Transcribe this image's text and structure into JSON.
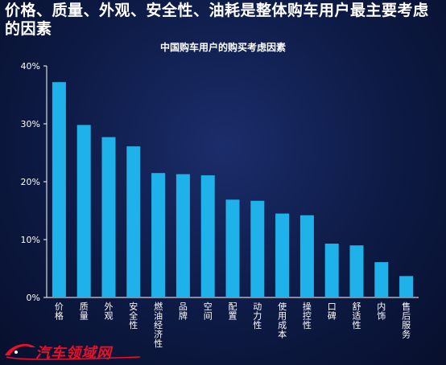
{
  "headline": "价格、质量、外观、安全性、油耗是整体购车用户最主要考虑的因素",
  "chart_data": {
    "type": "bar",
    "title": "中国购车用户的购买考虑因素",
    "categories": [
      "价格",
      "质量",
      "外观",
      "安全性",
      "燃油经济性",
      "品牌",
      "空间",
      "配置",
      "动力性",
      "使用成本",
      "操控性",
      "口碑",
      "舒适性",
      "内饰",
      "售后服务"
    ],
    "values": [
      37.2,
      29.8,
      27.7,
      26.1,
      21.5,
      21.3,
      21.1,
      16.9,
      16.7,
      14.5,
      14.2,
      9.3,
      9.0,
      6.1,
      3.7
    ],
    "ylim": [
      0,
      40
    ],
    "yticks": [
      "0%",
      "10%",
      "20%",
      "30%",
      "40%"
    ],
    "grid": false,
    "colors": {
      "bar": "#1fb1ea",
      "axis": "#ffffff"
    }
  },
  "watermark": "汽车领域网"
}
